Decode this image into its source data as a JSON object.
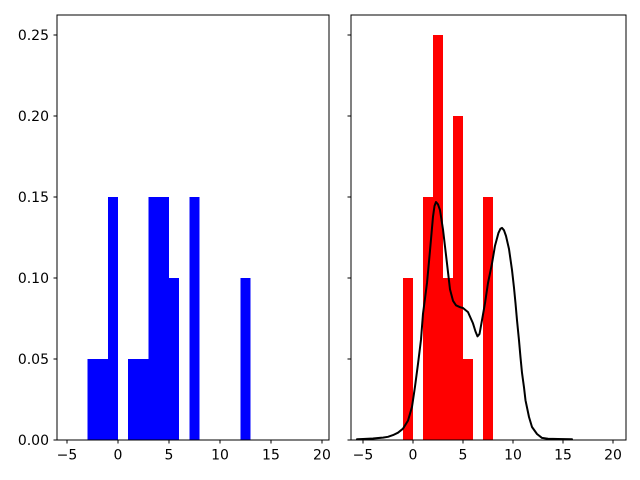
{
  "figure": {
    "background": "#ffffff",
    "title": "",
    "accent_colors": {
      "left_hist": "#0000ff",
      "right_hist": "#ff0000",
      "kde_line": "#000000"
    }
  },
  "chart_data": [
    {
      "type": "bar",
      "subtype": "density-histogram",
      "title": "",
      "xlabel": "",
      "ylabel": "",
      "grid": false,
      "legend": null,
      "bar_color": "#0000ff",
      "xlim": [
        -5.98,
        20.69
      ],
      "ylim": [
        0,
        0.2625
      ],
      "x_ticks": [
        -5,
        0,
        5,
        10,
        15,
        20
      ],
      "x_tick_labels": [
        "−5",
        "0",
        "5",
        "10",
        "15",
        "20"
      ],
      "y_ticks": [
        0,
        0.05,
        0.1,
        0.15,
        0.2,
        0.25
      ],
      "y_tick_labels": [
        "0.00",
        "0.05",
        "0.10",
        "0.15",
        "0.20",
        "0.25"
      ],
      "show_y_tick_labels": true,
      "bins": [
        {
          "x0": -3,
          "x1": -2,
          "density": 0.05
        },
        {
          "x0": -2,
          "x1": -1,
          "density": 0.05
        },
        {
          "x0": -1,
          "x1": 0,
          "density": 0.15
        },
        {
          "x0": 0,
          "x1": 1,
          "density": 0.0
        },
        {
          "x0": 1,
          "x1": 2,
          "density": 0.05
        },
        {
          "x0": 2,
          "x1": 3,
          "density": 0.05
        },
        {
          "x0": 3,
          "x1": 4,
          "density": 0.15
        },
        {
          "x0": 4,
          "x1": 5,
          "density": 0.15
        },
        {
          "x0": 5,
          "x1": 6,
          "density": 0.1
        },
        {
          "x0": 6,
          "x1": 7,
          "density": 0.0
        },
        {
          "x0": 7,
          "x1": 8,
          "density": 0.15
        },
        {
          "x0": 12,
          "x1": 13,
          "density": 0.1
        }
      ]
    },
    {
      "type": "bar+line",
      "subtype": "density-histogram-with-kde",
      "title": "",
      "xlabel": "",
      "ylabel": "",
      "grid": false,
      "legend": null,
      "bar_color": "#ff0000",
      "xlim": [
        -6.2,
        21.3
      ],
      "ylim": [
        0,
        0.2625
      ],
      "x_ticks": [
        -5,
        0,
        5,
        10,
        15,
        20
      ],
      "x_tick_labels": [
        "−5",
        "0",
        "5",
        "10",
        "15",
        "20"
      ],
      "y_ticks": [
        0,
        0.05,
        0.1,
        0.15,
        0.2,
        0.25
      ],
      "y_tick_labels": [
        "0.00",
        "0.05",
        "0.10",
        "0.15",
        "0.20",
        "0.25"
      ],
      "show_y_tick_labels": false,
      "bins": [
        {
          "x0": -1,
          "x1": 0,
          "density": 0.1
        },
        {
          "x0": 0,
          "x1": 1,
          "density": 0.0
        },
        {
          "x0": 1,
          "x1": 2,
          "density": 0.15
        },
        {
          "x0": 2,
          "x1": 3,
          "density": 0.25
        },
        {
          "x0": 3,
          "x1": 4,
          "density": 0.1
        },
        {
          "x0": 4,
          "x1": 5,
          "density": 0.2
        },
        {
          "x0": 5,
          "x1": 6,
          "density": 0.05
        },
        {
          "x0": 6,
          "x1": 7,
          "density": 0.0
        },
        {
          "x0": 7,
          "x1": 8,
          "density": 0.15
        }
      ],
      "kde": {
        "color": "#000000",
        "line_width": 2,
        "points": [
          [
            -5.6,
            0.0005
          ],
          [
            -5.0,
            0.0006
          ],
          [
            -4.0,
            0.0009
          ],
          [
            -3.0,
            0.0015
          ],
          [
            -2.5,
            0.002
          ],
          [
            -2.0,
            0.003
          ],
          [
            -1.5,
            0.0045
          ],
          [
            -1.0,
            0.007
          ],
          [
            -0.5,
            0.012
          ],
          [
            -0.1,
            0.0205
          ],
          [
            0.2,
            0.033
          ],
          [
            0.5,
            0.047
          ],
          [
            0.8,
            0.062
          ],
          [
            1.0,
            0.078
          ],
          [
            1.4,
            0.097
          ],
          [
            1.7,
            0.117
          ],
          [
            2.0,
            0.138
          ],
          [
            2.15,
            0.1445
          ],
          [
            2.3,
            0.147
          ],
          [
            2.5,
            0.1455
          ],
          [
            2.7,
            0.142
          ],
          [
            3.0,
            0.13
          ],
          [
            3.4,
            0.109
          ],
          [
            3.7,
            0.093
          ],
          [
            4.0,
            0.086
          ],
          [
            4.3,
            0.0832
          ],
          [
            4.7,
            0.082
          ],
          [
            5.0,
            0.0815
          ],
          [
            5.5,
            0.079
          ],
          [
            6.0,
            0.072
          ],
          [
            6.25,
            0.067
          ],
          [
            6.45,
            0.064
          ],
          [
            6.65,
            0.0655
          ],
          [
            6.9,
            0.074
          ],
          [
            7.2,
            0.0845
          ],
          [
            7.5,
            0.097
          ],
          [
            7.9,
            0.109
          ],
          [
            8.2,
            0.12
          ],
          [
            8.55,
            0.128
          ],
          [
            8.75,
            0.1305
          ],
          [
            8.9,
            0.131
          ],
          [
            9.1,
            0.1295
          ],
          [
            9.3,
            0.126
          ],
          [
            9.6,
            0.118
          ],
          [
            9.9,
            0.105
          ],
          [
            10.1,
            0.094
          ],
          [
            10.25,
            0.0845
          ],
          [
            10.4,
            0.074
          ],
          [
            10.6,
            0.0615
          ],
          [
            10.75,
            0.051
          ],
          [
            10.9,
            0.0415
          ],
          [
            11.1,
            0.0325
          ],
          [
            11.25,
            0.0245
          ],
          [
            11.6,
            0.0142
          ],
          [
            11.9,
            0.008
          ],
          [
            12.4,
            0.0037
          ],
          [
            12.9,
            0.0013
          ],
          [
            13.5,
            0.0008
          ],
          [
            14.5,
            0.0006
          ],
          [
            15.9,
            0.0005
          ]
        ]
      }
    }
  ]
}
